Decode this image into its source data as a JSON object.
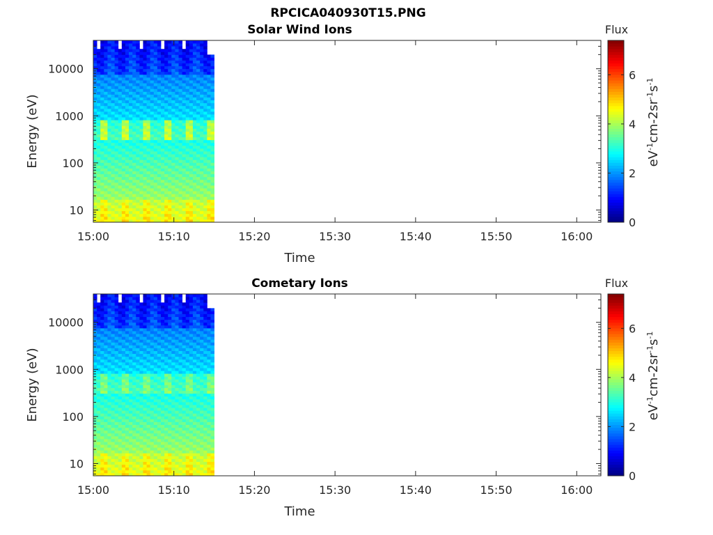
{
  "figure": {
    "title": "RPCICA040930T15.PNG"
  },
  "colormap": "jet",
  "chart_data": [
    {
      "type": "heatmap",
      "title": "Solar Wind Ions",
      "xlabel": "Time",
      "ylabel": "Energy (eV)",
      "y_scale": "log",
      "x_ticks": [
        "15:00",
        "15:10",
        "15:20",
        "15:30",
        "15:40",
        "15:50",
        "16:00"
      ],
      "xlim": [
        "15:00",
        "16:03"
      ],
      "y_ticks": [
        "10",
        "100",
        "1000",
        "10000"
      ],
      "ylim": [
        5.5,
        40000
      ],
      "data_time_range": [
        "15:00",
        "15:15"
      ],
      "colorbar": {
        "title": "Flux",
        "label": "eV-1cm-2sr-1s-1",
        "ticks": [
          "0",
          "2",
          "4",
          "6"
        ],
        "range": [
          0,
          7.4
        ]
      }
    },
    {
      "type": "heatmap",
      "title": "Cometary Ions",
      "xlabel": "Time",
      "ylabel": "Energy (eV)",
      "y_scale": "log",
      "x_ticks": [
        "15:00",
        "15:10",
        "15:20",
        "15:30",
        "15:40",
        "15:50",
        "16:00"
      ],
      "xlim": [
        "15:00",
        "16:03"
      ],
      "y_ticks": [
        "10",
        "100",
        "1000",
        "10000"
      ],
      "ylim": [
        5.5,
        40000
      ],
      "data_time_range": [
        "15:00",
        "15:15"
      ],
      "colorbar": {
        "title": "Flux",
        "label": "eV-1cm-2sr-1s-1",
        "ticks": [
          "0",
          "2",
          "4",
          "6"
        ],
        "range": [
          0,
          7.4
        ]
      }
    }
  ]
}
